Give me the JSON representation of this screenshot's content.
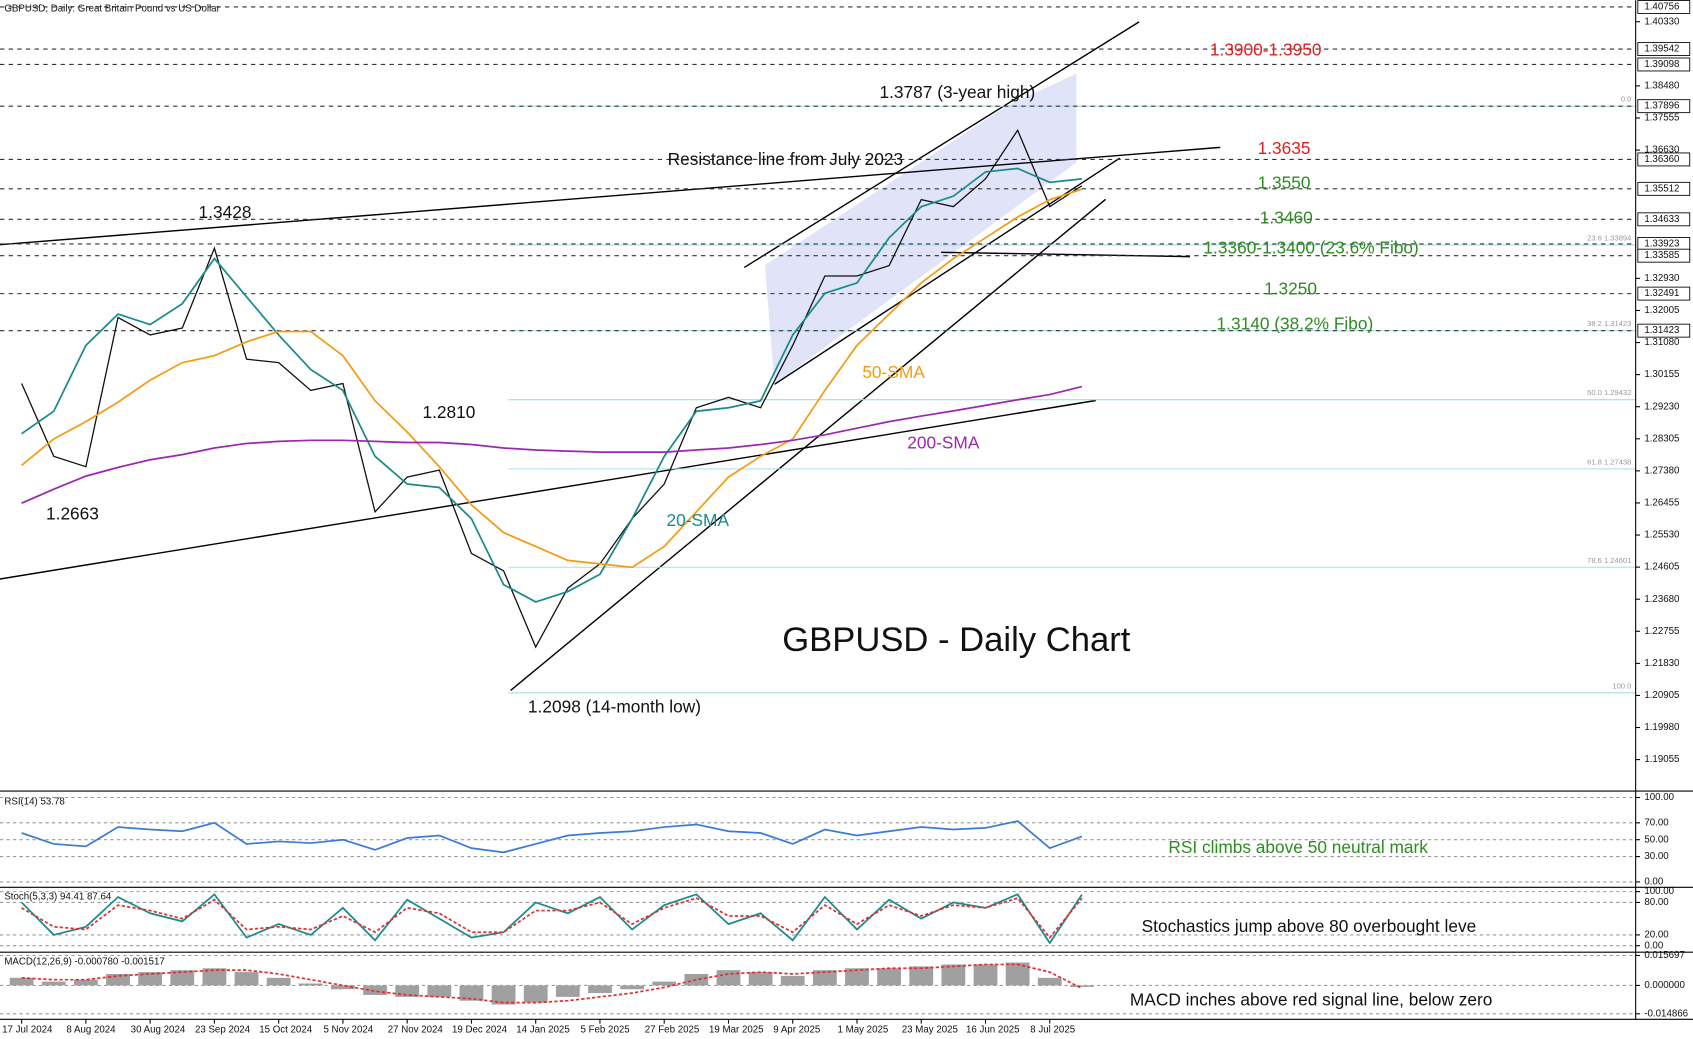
{
  "chart_data": [
    {
      "type": "line",
      "title": "GBPUSD, Daily: Great Britain Pound vs US Dollar",
      "categories": [
        "17 Jul 2024",
        null,
        "8 Aug 2024",
        null,
        "30 Aug 2024",
        null,
        "23 Sep 2024",
        null,
        "15 Oct 2024",
        null,
        "5 Nov 2024",
        null,
        "27 Nov 2024",
        null,
        "19 Dec 2024",
        null,
        "14 Jan 2025",
        null,
        "5 Feb 2025",
        null,
        "27 Feb 2025",
        null,
        "19 Mar 2025",
        null,
        "9 Apr 2025",
        null,
        "1 May 2025",
        null,
        "23 May 2025",
        null,
        "16 Jun 2025",
        null,
        "8 Jul 2025",
        null
      ],
      "series": [
        {
          "color": "#111111",
          "values": [
            1.299,
            1.278,
            1.275,
            1.318,
            1.313,
            1.315,
            1.338,
            1.306,
            1.305,
            1.297,
            1.299,
            1.262,
            1.272,
            1.274,
            1.25,
            1.245,
            1.223,
            1.24,
            1.247,
            1.26,
            1.27,
            1.292,
            1.295,
            1.292,
            1.31,
            1.33,
            1.33,
            1.333,
            1.352,
            1.35,
            1.358,
            1.372,
            1.35,
            1.356
          ]
        },
        {
          "name": "20-SMA",
          "color": "#1a8a8a",
          "values": [
            1.2845,
            1.291,
            1.31,
            1.319,
            1.316,
            1.322,
            1.335,
            1.324,
            1.313,
            1.303,
            1.297,
            1.278,
            1.27,
            1.269,
            1.26,
            1.241,
            1.236,
            1.239,
            1.244,
            1.26,
            1.278,
            1.291,
            1.292,
            1.294,
            1.313,
            1.325,
            1.328,
            1.341,
            1.35,
            1.353,
            1.36,
            1.361,
            1.357,
            1.358
          ]
        },
        {
          "name": "50-SMA",
          "color": "#f39c12",
          "values": [
            1.2754,
            1.283,
            1.288,
            1.2936,
            1.3,
            1.305,
            1.307,
            1.311,
            1.314,
            1.314,
            1.307,
            1.294,
            1.285,
            1.275,
            1.264,
            1.256,
            1.252,
            1.248,
            1.247,
            1.246,
            1.252,
            1.262,
            1.272,
            1.278,
            1.283,
            1.297,
            1.31,
            1.319,
            1.328,
            1.335,
            1.341,
            1.347,
            1.352,
            1.355
          ]
        },
        {
          "name": "200-SMA",
          "color": "#9b27b0",
          "values": [
            1.2645,
            1.2685,
            1.2723,
            1.2748,
            1.277,
            1.2785,
            1.2804,
            1.2817,
            1.2823,
            1.2826,
            1.2826,
            1.2823,
            1.282,
            1.282,
            1.2814,
            1.2804,
            1.2798,
            1.2795,
            1.2792,
            1.2792,
            1.2792,
            1.2798,
            1.2804,
            1.2814,
            1.2826,
            1.2842,
            1.2861,
            1.288,
            1.2896,
            1.2911,
            1.2927,
            1.2943,
            1.2958,
            1.2981
          ]
        }
      ],
      "ylim": [
        1.1818,
        1.4095
      ],
      "yticks": [
        {
          "value": 1.4033,
          "label": "1.40330"
        },
        {
          "value": 1.3848,
          "label": "1.38480"
        },
        {
          "value": 1.37555,
          "label": "1.37555"
        },
        {
          "value": 1.3663,
          "label": "1.36630"
        },
        {
          "value": 1.3293,
          "label": "1.32930"
        },
        {
          "value": 1.32005,
          "label": "1.32005"
        },
        {
          "value": 1.3108,
          "label": "1.31080"
        },
        {
          "value": 1.30155,
          "label": "1.30155"
        },
        {
          "value": 1.2923,
          "label": "1.29230"
        },
        {
          "value": 1.28305,
          "label": "1.28305"
        },
        {
          "value": 1.2738,
          "label": "1.27380"
        },
        {
          "value": 1.26455,
          "label": "1.26455"
        },
        {
          "value": 1.2553,
          "label": "1.25530"
        },
        {
          "value": 1.24605,
          "label": "1.24605"
        },
        {
          "value": 1.2368,
          "label": "1.23680"
        },
        {
          "value": 1.22755,
          "label": "1.22755"
        },
        {
          "value": 1.2183,
          "label": "1.21830"
        },
        {
          "value": 1.20905,
          "label": "1.20905"
        },
        {
          "value": 1.1998,
          "label": "1.19980"
        },
        {
          "value": 1.19055,
          "label": "1.19055"
        }
      ],
      "levels": [
        {
          "value": 1.40756,
          "label": "1.40756"
        },
        {
          "value": 1.39542,
          "label": "1.39542"
        },
        {
          "value": 1.39098,
          "label": "1.39098"
        },
        {
          "value": 1.37896,
          "label": "1.37896"
        },
        {
          "value": 1.3636,
          "label": "1.36360"
        },
        {
          "value": 1.35512,
          "label": "1.35512"
        },
        {
          "value": 1.34633,
          "label": "1.34633"
        },
        {
          "value": 1.33923,
          "label": "1.33923"
        },
        {
          "value": 1.33585,
          "label": "1.33585"
        },
        {
          "value": 1.32491,
          "label": "1.32491"
        },
        {
          "value": 1.31423,
          "label": "1.31423"
        }
      ],
      "fibo": [
        {
          "value": 1.37896,
          "label": "0.0"
        },
        {
          "value": 1.33894,
          "label": "23.6 1.33894"
        },
        {
          "value": 1.31423,
          "label": "38.2 1.31423"
        },
        {
          "value": 1.29432,
          "label": "50.0 1.29432"
        },
        {
          "value": 1.27438,
          "label": "61.8 1.27438"
        },
        {
          "value": 1.24601,
          "label": "78.6 1.24601"
        },
        {
          "value": 1.2098,
          "label": "100.0"
        }
      ],
      "annotations": [
        {
          "text": "1.3787 (3-year high)",
          "color": "#111111"
        },
        {
          "text": "Resistance line from July 2023",
          "color": "#111111"
        },
        {
          "text": "1.3428",
          "color": "#111111"
        },
        {
          "text": "1.2810",
          "color": "#111111"
        },
        {
          "text": "1.2663",
          "color": "#111111"
        },
        {
          "text": "1.2098 (14-month low)",
          "color": "#111111"
        },
        {
          "text": "20-SMA",
          "color": "#1a8a8a"
        },
        {
          "text": "50-SMA",
          "color": "#f39c12"
        },
        {
          "text": "200-SMA",
          "color": "#9b27b0"
        },
        {
          "text": "GBPUSD - Daily Chart",
          "color": "#111111"
        },
        {
          "text": "1.3900-1.3950",
          "color": "#e02020"
        },
        {
          "text": "1.3635",
          "color": "#e02020"
        },
        {
          "text": "1.3550",
          "color": "#2e8b22"
        },
        {
          "text": "1.3460",
          "color": "#2e8b22"
        },
        {
          "text": "1.3360-1.3400 (23.6% Fibo)",
          "color": "#2e8b22"
        },
        {
          "text": "1.3250",
          "color": "#2e8b22"
        },
        {
          "text": "1.3140 (38.2% Fibo)",
          "color": "#2e8b22"
        }
      ]
    },
    {
      "type": "line",
      "title": "RSI(14) 53.78",
      "series": [
        {
          "color": "#3a7bd5",
          "values": [
            58,
            45,
            42,
            65,
            62,
            60,
            70,
            45,
            48,
            46,
            50,
            38,
            52,
            55,
            40,
            35,
            45,
            55,
            58,
            60,
            65,
            68,
            60,
            58,
            45,
            62,
            55,
            60,
            65,
            62,
            64,
            72,
            40,
            53.78
          ]
        }
      ],
      "ylim": [
        -6.4,
        105.1
      ],
      "yticks": [
        {
          "value": 100,
          "label": "100.00"
        },
        {
          "value": 70,
          "label": "70.00"
        },
        {
          "value": 50,
          "label": "50.00"
        },
        {
          "value": 30,
          "label": "30.00"
        },
        {
          "value": 0,
          "label": "0.00"
        }
      ],
      "annotations": [
        {
          "text": "RSI climbs above 50 neutral mark",
          "color": "#2e8b22"
        }
      ]
    },
    {
      "type": "line",
      "title": "Stoch(5,3,3) 94.41 87.64",
      "series": [
        {
          "color": "#1a8a8a",
          "values": [
            80,
            20,
            35,
            90,
            60,
            45,
            95,
            15,
            40,
            20,
            70,
            10,
            85,
            50,
            15,
            25,
            80,
            60,
            90,
            30,
            75,
            95,
            40,
            60,
            10,
            90,
            30,
            85,
            50,
            80,
            70,
            95,
            5,
            94.41
          ]
        },
        {
          "color": "#e03030",
          "dashed": true,
          "values": [
            70,
            35,
            30,
            75,
            65,
            50,
            85,
            30,
            35,
            30,
            55,
            25,
            70,
            60,
            25,
            25,
            65,
            65,
            80,
            40,
            70,
            88,
            55,
            55,
            25,
            75,
            40,
            75,
            55,
            75,
            70,
            88,
            15,
            87.64
          ]
        }
      ],
      "ylim": [
        -10,
        106
      ],
      "yticks": [
        {
          "value": 100,
          "label": "100.00"
        },
        {
          "value": 80,
          "label": "80.00"
        },
        {
          "value": 20,
          "label": "20.00"
        },
        {
          "value": 0,
          "label": "0.00"
        }
      ],
      "annotations": [
        {
          "text": "Stochastics jump above 80 overbought leve",
          "color": "#111111"
        }
      ]
    },
    {
      "type": "bar",
      "title": "MACD(12,26,9) -0.000780 -0.001517",
      "color": "#a0a0a0",
      "values": [
        0.004,
        0.002,
        0.003,
        0.006,
        0.007,
        0.008,
        0.009,
        0.007,
        0.004,
        0.001,
        -0.002,
        -0.005,
        -0.006,
        -0.006,
        -0.008,
        -0.01,
        -0.009,
        -0.006,
        -0.004,
        -0.002,
        0.002,
        0.006,
        0.008,
        0.007,
        0.005,
        0.008,
        0.009,
        0.009,
        0.01,
        0.011,
        0.011,
        0.012,
        0.004,
        -0.00078
      ],
      "series": [
        {
          "color": "#e03030",
          "dashed": true,
          "values": [
            0.004,
            0.003,
            0.003,
            0.005,
            0.006,
            0.007,
            0.008,
            0.008,
            0.006,
            0.003,
            0.0,
            -0.003,
            -0.005,
            -0.006,
            -0.007,
            -0.009,
            -0.009,
            -0.008,
            -0.006,
            -0.004,
            -0.001,
            0.003,
            0.006,
            0.007,
            0.006,
            0.007,
            0.008,
            0.009,
            0.009,
            0.01,
            0.011,
            0.011,
            0.007,
            -0.001517
          ]
        }
      ],
      "ylim": [
        -0.01775,
        0.01685
      ],
      "yticks": [
        0.015697,
        {
          "value": 0,
          "label": "0.000000"
        },
        -0.014866
      ],
      "annotations": [
        {
          "text": "MACD inches above red signal line, below zero",
          "color": "#111111"
        }
      ]
    }
  ]
}
